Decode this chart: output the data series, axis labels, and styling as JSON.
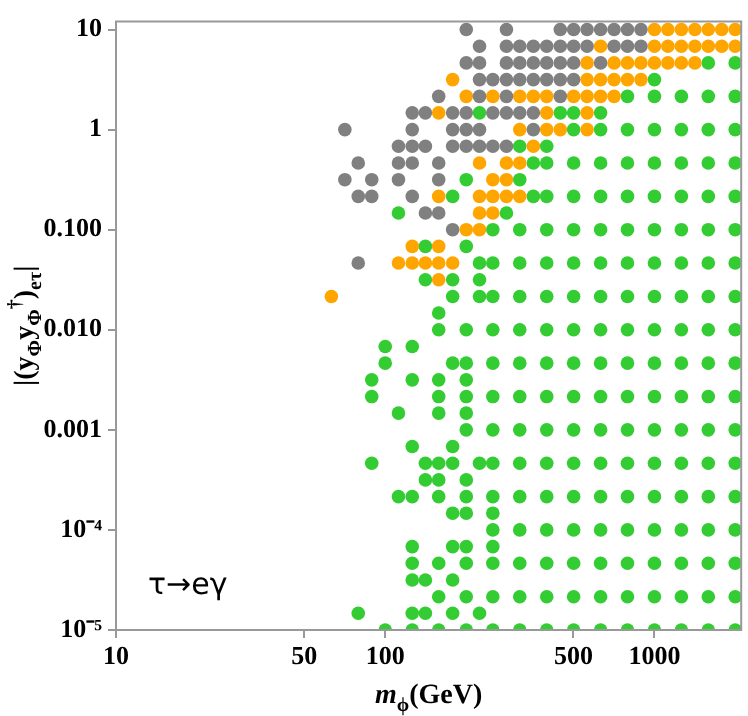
{
  "chart_data": {
    "type": "scatter",
    "xlabel": "m$_{ϕ}$(GeV)",
    "ylabel": "|(y$_{Φ}$y$_{Φ}$$^{†}$)$_{eτ}$|",
    "annotations": [
      "τ→eγ"
    ],
    "log": "xy",
    "grid": false,
    "legend": false,
    "marker": "circle",
    "xlim": [
      10,
      2100
    ],
    "ylim": [
      1e-05,
      12
    ],
    "xticks": [
      10,
      50,
      100,
      500,
      1000
    ],
    "yticks": [
      10,
      1,
      {
        "value": 0.1,
        "label": "0.100"
      },
      {
        "value": 0.01,
        "label": "0.010"
      },
      0.001,
      {
        "value": 0.0001,
        "label": "10⁻⁴"
      },
      {
        "value": 1e-05,
        "label": "10⁻⁵"
      }
    ],
    "series": [
      {
        "color": "#808080",
        "x": [
          200,
          282,
          447,
          501,
          562,
          631,
          708,
          794,
          891
        ],
        "values": [
          10,
          10,
          10,
          10,
          10,
          10,
          10,
          10,
          10
        ]
      },
      {
        "color": "#808080",
        "x": [
          224,
          282,
          316,
          355,
          398,
          447,
          501,
          562,
          708,
          794,
          891
        ],
        "values": [
          6.81,
          6.81,
          6.81,
          6.81,
          6.81,
          6.81,
          6.81,
          6.81,
          6.81,
          6.81,
          6.81
        ]
      },
      {
        "color": "#808080",
        "x": [
          200,
          224,
          282,
          316,
          355,
          398,
          447,
          501,
          631
        ],
        "values": [
          4.64,
          4.64,
          4.64,
          4.64,
          4.64,
          4.64,
          4.64,
          4.64,
          4.64
        ]
      },
      {
        "color": "#808080",
        "x": [
          224,
          251,
          282,
          316,
          355,
          398,
          447,
          501
        ],
        "values": [
          3.16,
          3.16,
          3.16,
          3.16,
          3.16,
          3.16,
          3.16,
          3.16
        ]
      },
      {
        "color": "#808080",
        "x": [
          158,
          224,
          282,
          447
        ],
        "values": [
          2.15,
          2.15,
          2.15,
          2.15
        ]
      },
      {
        "color": "#808080",
        "x": [
          126,
          141,
          178,
          200,
          251,
          282,
          316,
          355
        ],
        "values": [
          1.47,
          1.47,
          1.47,
          1.47,
          1.47,
          1.47,
          1.47,
          1.47
        ]
      },
      {
        "color": "#808080",
        "x": [
          70.8,
          126,
          178,
          200,
          224,
          355
        ],
        "values": [
          1,
          1,
          1,
          1,
          1,
          1
        ]
      },
      {
        "color": "#808080",
        "x": [
          112,
          126,
          141,
          178,
          200,
          224,
          251,
          282
        ],
        "values": [
          0.681,
          0.681,
          0.681,
          0.681,
          0.681,
          0.681,
          0.681,
          0.681
        ]
      },
      {
        "color": "#808080",
        "x": [
          79.4,
          112,
          126,
          158
        ],
        "values": [
          0.464,
          0.464,
          0.464,
          0.464
        ]
      },
      {
        "color": "#808080",
        "x": [
          70.8,
          89.1,
          112,
          158
        ],
        "values": [
          0.316,
          0.316,
          0.316,
          0.316
        ]
      },
      {
        "color": "#808080",
        "x": [
          79.4,
          89.1,
          126
        ],
        "values": [
          0.215,
          0.215,
          0.215
        ]
      },
      {
        "color": "#808080",
        "x": [
          141,
          158
        ],
        "values": [
          0.147,
          0.147
        ]
      },
      {
        "color": "#808080",
        "x": [
          178
        ],
        "values": [
          0.1
        ]
      },
      {
        "color": "#808080",
        "x": [
          79.4
        ],
        "values": [
          0.0464
        ]
      },
      {
        "color": "#ffa500",
        "x": [
          1000,
          1122,
          1259,
          1413,
          1585,
          1778,
          1995
        ],
        "values": [
          10,
          10,
          10,
          10,
          10,
          10,
          10
        ]
      },
      {
        "color": "#ffa500",
        "x": [
          631,
          1000,
          1122,
          1259,
          1413,
          1585,
          1778,
          1995
        ],
        "values": [
          6.81,
          6.81,
          6.81,
          6.81,
          6.81,
          6.81,
          6.81,
          6.81
        ]
      },
      {
        "color": "#ffa500",
        "x": [
          562,
          708,
          794,
          891,
          1000,
          1122,
          1259,
          1413
        ],
        "values": [
          4.64,
          4.64,
          4.64,
          4.64,
          4.64,
          4.64,
          4.64,
          4.64
        ]
      },
      {
        "color": "#ffa500",
        "x": [
          178,
          562,
          631,
          708,
          794,
          891
        ],
        "values": [
          3.16,
          3.16,
          3.16,
          3.16,
          3.16,
          3.16
        ]
      },
      {
        "color": "#ffa500",
        "x": [
          200,
          251,
          316,
          355,
          398,
          501,
          562,
          631,
          708
        ],
        "values": [
          2.15,
          2.15,
          2.15,
          2.15,
          2.15,
          2.15,
          2.15,
          2.15,
          2.15
        ]
      },
      {
        "color": "#ffa500",
        "x": [
          158,
          398,
          562
        ],
        "values": [
          1.47,
          1.47,
          1.47
        ]
      },
      {
        "color": "#ffa500",
        "x": [
          316,
          398,
          447,
          562
        ],
        "values": [
          1,
          1,
          1,
          1
        ]
      },
      {
        "color": "#ffa500",
        "x": [
          355
        ],
        "values": [
          0.681
        ]
      },
      {
        "color": "#ffa500",
        "x": [
          224,
          282,
          316
        ],
        "values": [
          0.464,
          0.464,
          0.464
        ]
      },
      {
        "color": "#ffa500",
        "x": [
          251,
          282
        ],
        "values": [
          0.316,
          0.316
        ]
      },
      {
        "color": "#ffa500",
        "x": [
          158,
          224,
          251,
          282,
          316
        ],
        "values": [
          0.215,
          0.215,
          0.215,
          0.215,
          0.215
        ]
      },
      {
        "color": "#ffa500",
        "x": [
          224,
          251
        ],
        "values": [
          0.147,
          0.147
        ]
      },
      {
        "color": "#ffa500",
        "x": [
          200,
          224
        ],
        "values": [
          0.1,
          0.1
        ]
      },
      {
        "color": "#ffa500",
        "x": [
          126,
          158
        ],
        "values": [
          0.0681,
          0.0681
        ]
      },
      {
        "color": "#ffa500",
        "x": [
          112,
          126,
          141,
          158,
          178
        ],
        "values": [
          0.0464,
          0.0464,
          0.0464,
          0.0464,
          0.0464
        ]
      },
      {
        "color": "#ffa500",
        "x": [
          158
        ],
        "values": [
          0.0316
        ]
      },
      {
        "color": "#ffa500",
        "x": [
          63.1
        ],
        "values": [
          0.0215
        ]
      },
      {
        "color": "#33cc33",
        "x": [
          1585,
          1995
        ],
        "values": [
          4.64,
          4.64
        ]
      },
      {
        "color": "#33cc33",
        "x": [
          1000
        ],
        "values": [
          3.16
        ]
      },
      {
        "color": "#33cc33",
        "x": [
          794,
          1000,
          1259,
          1585,
          1995
        ],
        "values": [
          2.15,
          2.15,
          2.15,
          2.15,
          2.15
        ]
      },
      {
        "color": "#33cc33",
        "x": [
          224,
          447,
          501,
          631
        ],
        "values": [
          1.47,
          1.47,
          1.47,
          1.47
        ]
      },
      {
        "color": "#33cc33",
        "x": [
          501,
          631,
          794,
          1000,
          1259,
          1585,
          1995
        ],
        "values": [
          1,
          1,
          1,
          1,
          1,
          1,
          1
        ]
      },
      {
        "color": "#33cc33",
        "x": [
          316,
          398
        ],
        "values": [
          0.681,
          0.681
        ]
      },
      {
        "color": "#33cc33",
        "x": [
          355,
          398,
          501,
          631,
          794,
          1000,
          1259,
          1585,
          1995
        ],
        "values": [
          0.464,
          0.464,
          0.464,
          0.464,
          0.464,
          0.464,
          0.464,
          0.464,
          0.464
        ]
      },
      {
        "color": "#33cc33",
        "x": [
          200,
          316
        ],
        "values": [
          0.316,
          0.316
        ]
      },
      {
        "color": "#33cc33",
        "x": [
          178,
          355,
          398,
          501,
          631,
          794,
          1000,
          1259,
          1585,
          1995
        ],
        "values": [
          0.215,
          0.215,
          0.215,
          0.215,
          0.215,
          0.215,
          0.215,
          0.215,
          0.215,
          0.215
        ]
      },
      {
        "color": "#33cc33",
        "x": [
          112,
          282
        ],
        "values": [
          0.147,
          0.147
        ]
      },
      {
        "color": "#33cc33",
        "x": [
          251,
          316,
          398,
          501,
          631,
          794,
          1000,
          1259,
          1585,
          1995
        ],
        "values": [
          0.1,
          0.1,
          0.1,
          0.1,
          0.1,
          0.1,
          0.1,
          0.1,
          0.1,
          0.1
        ]
      },
      {
        "color": "#33cc33",
        "x": [
          141,
          200
        ],
        "values": [
          0.0681,
          0.0681
        ]
      },
      {
        "color": "#33cc33",
        "x": [
          224,
          251,
          316,
          398,
          501,
          631,
          794,
          1000,
          1259,
          1585,
          1995
        ],
        "values": [
          0.0464,
          0.0464,
          0.0464,
          0.0464,
          0.0464,
          0.0464,
          0.0464,
          0.0464,
          0.0464,
          0.0464,
          0.0464
        ]
      },
      {
        "color": "#33cc33",
        "x": [
          141,
          178,
          224
        ],
        "values": [
          0.0316,
          0.0316,
          0.0316
        ]
      },
      {
        "color": "#33cc33",
        "x": [
          178,
          224,
          251,
          316,
          398,
          501,
          631,
          794,
          1000,
          1259,
          1585,
          1995
        ],
        "values": [
          0.0215,
          0.0215,
          0.0215,
          0.0215,
          0.0215,
          0.0215,
          0.0215,
          0.0215,
          0.0215,
          0.0215,
          0.0215,
          0.0215
        ]
      },
      {
        "color": "#33cc33",
        "x": [
          158
        ],
        "values": [
          0.0147
        ]
      },
      {
        "color": "#33cc33",
        "x": [
          158,
          200,
          251,
          316,
          398,
          501,
          631,
          794,
          1000,
          1259,
          1585,
          1995
        ],
        "values": [
          0.01,
          0.01,
          0.01,
          0.01,
          0.01,
          0.01,
          0.01,
          0.01,
          0.01,
          0.01,
          0.01,
          0.01
        ]
      },
      {
        "color": "#33cc33",
        "x": [
          100,
          126
        ],
        "values": [
          0.00681,
          0.00681
        ]
      },
      {
        "color": "#33cc33",
        "x": [
          100,
          178,
          200,
          251,
          316,
          398,
          501,
          631,
          794,
          1000,
          1259,
          1585,
          1995
        ],
        "values": [
          0.00464,
          0.00464,
          0.00464,
          0.00464,
          0.00464,
          0.00464,
          0.00464,
          0.00464,
          0.00464,
          0.00464,
          0.00464,
          0.00464,
          0.00464
        ]
      },
      {
        "color": "#33cc33",
        "x": [
          89.1,
          126,
          158,
          200
        ],
        "values": [
          0.00316,
          0.00316,
          0.00316,
          0.00316
        ]
      },
      {
        "color": "#33cc33",
        "x": [
          89.1,
          158,
          200,
          251,
          316,
          398,
          501,
          631,
          794,
          1000,
          1259,
          1585,
          1995
        ],
        "values": [
          0.00215,
          0.00215,
          0.00215,
          0.00215,
          0.00215,
          0.00215,
          0.00215,
          0.00215,
          0.00215,
          0.00215,
          0.00215,
          0.00215,
          0.00215
        ]
      },
      {
        "color": "#33cc33",
        "x": [
          112,
          158,
          200
        ],
        "values": [
          0.00147,
          0.00147,
          0.00147
        ]
      },
      {
        "color": "#33cc33",
        "x": [
          200,
          251,
          316,
          398,
          501,
          631,
          794,
          1000,
          1259,
          1585,
          1995
        ],
        "values": [
          0.001,
          0.001,
          0.001,
          0.001,
          0.001,
          0.001,
          0.001,
          0.001,
          0.001,
          0.001,
          0.001
        ]
      },
      {
        "color": "#33cc33",
        "x": [
          126,
          178
        ],
        "values": [
          0.000681,
          0.000681
        ]
      },
      {
        "color": "#33cc33",
        "x": [
          89.1,
          141,
          158,
          178,
          224,
          251,
          316,
          398,
          501,
          631,
          794,
          1000,
          1259,
          1585,
          1995
        ],
        "values": [
          0.000464,
          0.000464,
          0.000464,
          0.000464,
          0.000464,
          0.000464,
          0.000464,
          0.000464,
          0.000464,
          0.000464,
          0.000464,
          0.000464,
          0.000464,
          0.000464,
          0.000464
        ]
      },
      {
        "color": "#33cc33",
        "x": [
          141,
          158,
          200
        ],
        "values": [
          0.000316,
          0.000316,
          0.000316
        ]
      },
      {
        "color": "#33cc33",
        "x": [
          112,
          126,
          158,
          200,
          251,
          316,
          398,
          501,
          631,
          794,
          1000,
          1259,
          1585,
          1995
        ],
        "values": [
          0.000215,
          0.000215,
          0.000215,
          0.000215,
          0.000215,
          0.000215,
          0.000215,
          0.000215,
          0.000215,
          0.000215,
          0.000215,
          0.000215,
          0.000215,
          0.000215
        ]
      },
      {
        "color": "#33cc33",
        "x": [
          178,
          200,
          251
        ],
        "values": [
          0.000147,
          0.000147,
          0.000147
        ]
      },
      {
        "color": "#33cc33",
        "x": [
          251,
          316,
          398,
          501,
          631,
          794,
          1000,
          1259,
          1585,
          1995
        ],
        "values": [
          0.0001,
          0.0001,
          0.0001,
          0.0001,
          0.0001,
          0.0001,
          0.0001,
          0.0001,
          0.0001,
          0.0001
        ]
      },
      {
        "color": "#33cc33",
        "x": [
          126,
          178,
          200,
          251
        ],
        "values": [
          6.81e-05,
          6.81e-05,
          6.81e-05,
          6.81e-05
        ]
      },
      {
        "color": "#33cc33",
        "x": [
          126,
          158,
          200,
          251,
          316,
          398,
          501,
          631,
          794,
          1000,
          1259,
          1585,
          1995
        ],
        "values": [
          4.64e-05,
          4.64e-05,
          4.64e-05,
          4.64e-05,
          4.64e-05,
          4.64e-05,
          4.64e-05,
          4.64e-05,
          4.64e-05,
          4.64e-05,
          4.64e-05,
          4.64e-05,
          4.64e-05
        ]
      },
      {
        "color": "#33cc33",
        "x": [
          126,
          141,
          178
        ],
        "values": [
          3.16e-05,
          3.16e-05,
          3.16e-05
        ]
      },
      {
        "color": "#33cc33",
        "x": [
          158,
          200,
          251,
          316,
          398,
          501,
          631,
          794,
          1000,
          1259,
          1585,
          1995
        ],
        "values": [
          2.15e-05,
          2.15e-05,
          2.15e-05,
          2.15e-05,
          2.15e-05,
          2.15e-05,
          2.15e-05,
          2.15e-05,
          2.15e-05,
          2.15e-05,
          2.15e-05,
          2.15e-05
        ]
      },
      {
        "color": "#33cc33",
        "x": [
          79.4,
          126,
          141,
          178,
          224
        ],
        "values": [
          1.47e-05,
          1.47e-05,
          1.47e-05,
          1.47e-05,
          1.47e-05
        ]
      },
      {
        "color": "#33cc33",
        "x": [
          100,
          126,
          158,
          200,
          251,
          316,
          398,
          501,
          631,
          794,
          1000,
          1259,
          1585,
          1995
        ],
        "values": [
          1e-05,
          1e-05,
          1e-05,
          1e-05,
          1e-05,
          1e-05,
          1e-05,
          1e-05,
          1e-05,
          1e-05,
          1e-05,
          1e-05,
          1e-05,
          1e-05
        ]
      }
    ]
  }
}
